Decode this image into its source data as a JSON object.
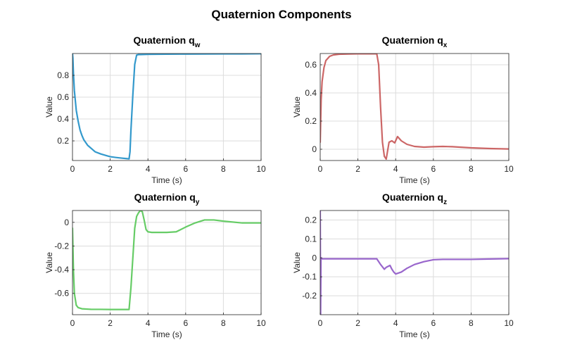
{
  "figure": {
    "title": "Quaternion Components"
  },
  "chart_data": [
    {
      "type": "line",
      "title": "Quaternion q",
      "title_subscript": "w",
      "xlabel": "Time (s)",
      "ylabel": "Value",
      "xlim": [
        0,
        10
      ],
      "ylim": [
        0.02,
        1.0
      ],
      "xticks": [
        0,
        2,
        4,
        6,
        8,
        10
      ],
      "xtick_labels": [
        "0",
        "2",
        "4",
        "6",
        "8",
        "10"
      ],
      "yticks": [
        0.2,
        0.4,
        0.6,
        0.8
      ],
      "ytick_labels": [
        "0.2",
        "0.4",
        "0.6",
        "0.8"
      ],
      "grid": true,
      "color": "#3399cc",
      "series": [
        {
          "x": [
            0,
            0.02,
            0.05,
            0.1,
            0.2,
            0.3,
            0.4,
            0.5,
            0.6,
            0.8,
            1.0,
            1.2,
            1.5,
            1.8,
            2.0,
            2.3,
            2.6,
            2.9,
            3.0,
            3.05,
            3.1,
            3.2,
            3.3,
            3.4,
            3.5,
            3.6,
            4.0,
            5.0,
            6.0,
            7.0,
            8.0,
            9.0,
            10.0
          ],
          "y": [
            1.0,
            0.96,
            0.82,
            0.66,
            0.48,
            0.38,
            0.3,
            0.25,
            0.21,
            0.16,
            0.13,
            0.1,
            0.08,
            0.065,
            0.055,
            0.048,
            0.042,
            0.037,
            0.035,
            0.1,
            0.3,
            0.62,
            0.9,
            0.985,
            0.99,
            0.99,
            0.993,
            0.994,
            0.995,
            0.996,
            0.997,
            0.997,
            0.998
          ]
        }
      ]
    },
    {
      "type": "line",
      "title": "Quaternion q",
      "title_subscript": "x",
      "xlabel": "Time (s)",
      "ylabel": "Value",
      "xlim": [
        0,
        10
      ],
      "ylim": [
        -0.08,
        0.68
      ],
      "xticks": [
        0,
        2,
        4,
        6,
        8,
        10
      ],
      "xtick_labels": [
        "0",
        "2",
        "4",
        "6",
        "8",
        "10"
      ],
      "yticks": [
        0,
        0.2,
        0.4,
        0.6
      ],
      "ytick_labels": [
        "0",
        "0.2",
        "0.4",
        "0.6"
      ],
      "grid": true,
      "color": "#cc6666",
      "series": [
        {
          "x": [
            0,
            0.05,
            0.1,
            0.2,
            0.3,
            0.5,
            0.7,
            1.0,
            1.5,
            2.0,
            2.5,
            3.0,
            3.1,
            3.15,
            3.2,
            3.3,
            3.4,
            3.5,
            3.55,
            3.65,
            3.8,
            3.95,
            4.1,
            4.3,
            4.6,
            5.0,
            5.5,
            6.0,
            6.5,
            7.0,
            8.0,
            9.0,
            10.0
          ],
          "y": [
            0.05,
            0.35,
            0.48,
            0.58,
            0.63,
            0.66,
            0.67,
            0.675,
            0.677,
            0.678,
            0.678,
            0.678,
            0.6,
            0.45,
            0.3,
            0.05,
            -0.05,
            -0.07,
            -0.03,
            0.05,
            0.06,
            0.045,
            0.09,
            0.06,
            0.035,
            0.02,
            0.015,
            0.018,
            0.02,
            0.018,
            0.01,
            0.005,
            0.002
          ]
        }
      ]
    },
    {
      "type": "line",
      "title": "Quaternion q",
      "title_subscript": "y",
      "xlabel": "Time (s)",
      "ylabel": "Value",
      "xlim": [
        0,
        10
      ],
      "ylim": [
        -0.78,
        0.1
      ],
      "xticks": [
        0,
        2,
        4,
        6,
        8,
        10
      ],
      "xtick_labels": [
        "0",
        "2",
        "4",
        "6",
        "8",
        "10"
      ],
      "yticks": [
        -0.6,
        -0.4,
        -0.2,
        0
      ],
      "ytick_labels": [
        "-0.6",
        "-0.4",
        "-0.2",
        "0"
      ],
      "grid": true,
      "color": "#66cc66",
      "series": [
        {
          "x": [
            0,
            0.05,
            0.1,
            0.2,
            0.3,
            0.5,
            1.0,
            1.5,
            2.0,
            2.5,
            3.0,
            3.1,
            3.2,
            3.3,
            3.4,
            3.5,
            3.6,
            3.7,
            3.8,
            3.9,
            4.0,
            4.2,
            4.5,
            5.0,
            5.5,
            6.0,
            6.5,
            7.0,
            7.5,
            8.0,
            9.0,
            9.5,
            10.0
          ],
          "y": [
            -0.05,
            -0.4,
            -0.6,
            -0.7,
            -0.72,
            -0.73,
            -0.735,
            -0.735,
            -0.736,
            -0.736,
            -0.736,
            -0.55,
            -0.3,
            -0.05,
            0.05,
            0.08,
            0.1,
            0.09,
            0.02,
            -0.06,
            -0.08,
            -0.085,
            -0.085,
            -0.085,
            -0.08,
            -0.04,
            -0.005,
            0.02,
            0.02,
            0.01,
            -0.005,
            -0.005,
            -0.005
          ]
        }
      ]
    },
    {
      "type": "line",
      "title": "Quaternion q",
      "title_subscript": "z",
      "xlabel": "Time (s)",
      "ylabel": "Value",
      "xlim": [
        0,
        10
      ],
      "ylim": [
        -0.3,
        0.25
      ],
      "xticks": [
        0,
        2,
        4,
        6,
        8,
        10
      ],
      "xtick_labels": [
        "0",
        "2",
        "4",
        "6",
        "8",
        "10"
      ],
      "yticks": [
        -0.2,
        -0.1,
        0,
        0.1,
        0.2
      ],
      "ytick_labels": [
        "-0.2",
        "-0.1",
        "0",
        "0.1",
        "0.2"
      ],
      "grid": true,
      "color": "#9966cc",
      "series": [
        {
          "x": [
            0,
            0.02,
            0.04,
            0.06,
            0.1,
            0.3,
            1.0,
            2.0,
            3.0,
            3.2,
            3.4,
            3.5,
            3.7,
            3.8,
            3.9,
            4.0,
            4.3,
            4.6,
            5.0,
            5.5,
            6.0,
            6.5,
            7.0,
            8.0,
            9.0,
            10.0
          ],
          "y": [
            0.25,
            -0.3,
            0.0,
            -0.005,
            -0.005,
            -0.005,
            -0.005,
            -0.005,
            -0.005,
            -0.035,
            -0.06,
            -0.05,
            -0.04,
            -0.06,
            -0.075,
            -0.085,
            -0.075,
            -0.055,
            -0.035,
            -0.02,
            -0.01,
            -0.008,
            -0.008,
            -0.008,
            -0.006,
            -0.004
          ]
        }
      ]
    }
  ]
}
